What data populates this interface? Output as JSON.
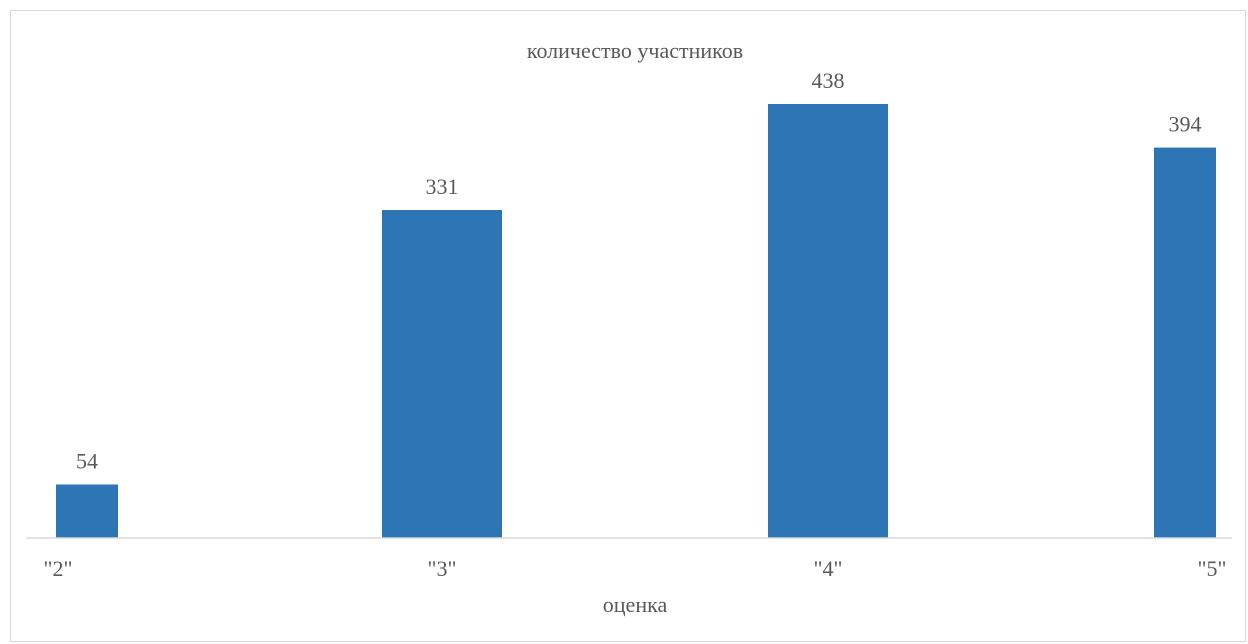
{
  "chart_data": {
    "type": "bar",
    "title": "количество участников",
    "xlabel": "оценка",
    "ylabel": "",
    "categories": [
      "\"2\"",
      "\"3\"",
      "\"4\"",
      "\"5\""
    ],
    "values": [
      54,
      331,
      438,
      394
    ],
    "ylim": [
      0,
      480
    ],
    "grid": false,
    "legend": "none",
    "bar_color": "#2E75B6",
    "axis_color": "#D9D9D9",
    "text_color": "#595959"
  }
}
